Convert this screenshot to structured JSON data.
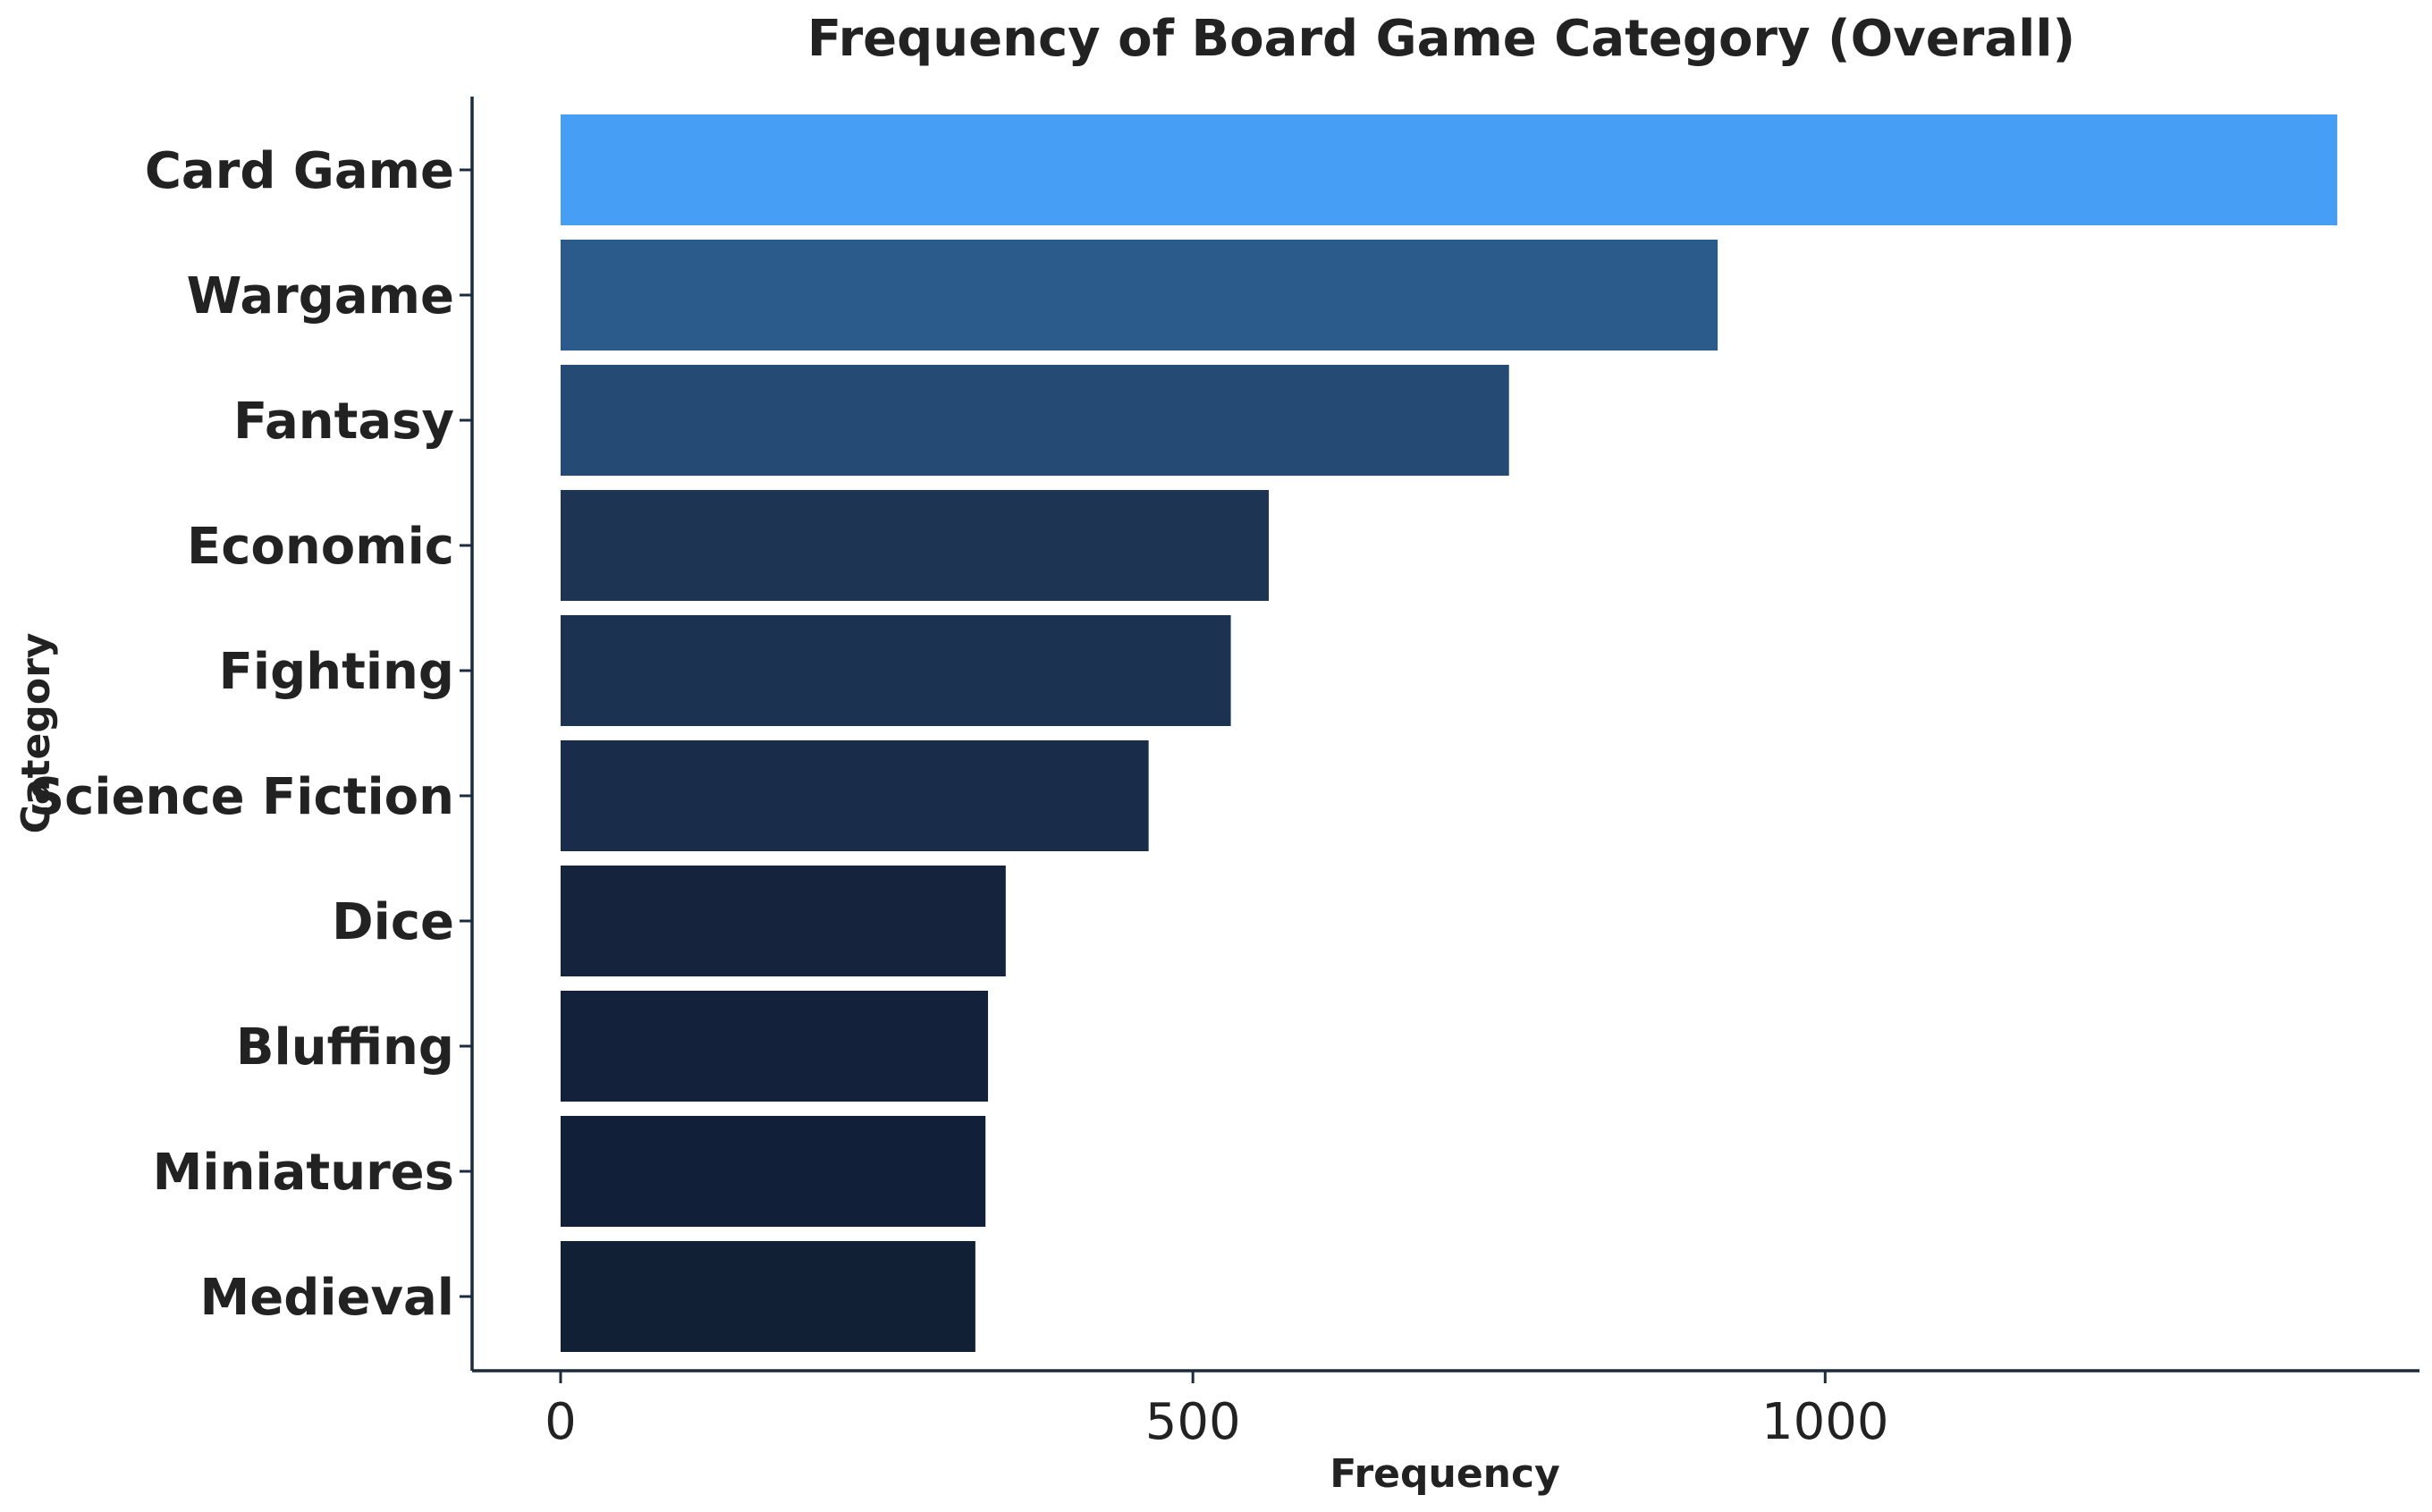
{
  "chart_data": {
    "type": "bar",
    "orientation": "horizontal",
    "title": "Frequency of Board Game Category (Overall)",
    "xlabel": "Frequency",
    "ylabel": "Category",
    "xlim": [
      -70,
      1470
    ],
    "xticks": [
      0,
      500,
      1000
    ],
    "grid": false,
    "legend": "none",
    "categories": [
      "Card Game",
      "Wargame",
      "Fantasy",
      "Economic",
      "Fighting",
      "Science Fiction",
      "Dice",
      "Bluffing",
      "Miniatures",
      "Medieval"
    ],
    "values": [
      1405,
      915,
      750,
      560,
      530,
      465,
      352,
      338,
      336,
      328
    ],
    "colors": [
      "#479ff5",
      "#2b5b8b",
      "#254a73",
      "#1d3553",
      "#1b3350",
      "#192d4a",
      "#15233c",
      "#13213a",
      "#121f38",
      "#122036"
    ]
  }
}
